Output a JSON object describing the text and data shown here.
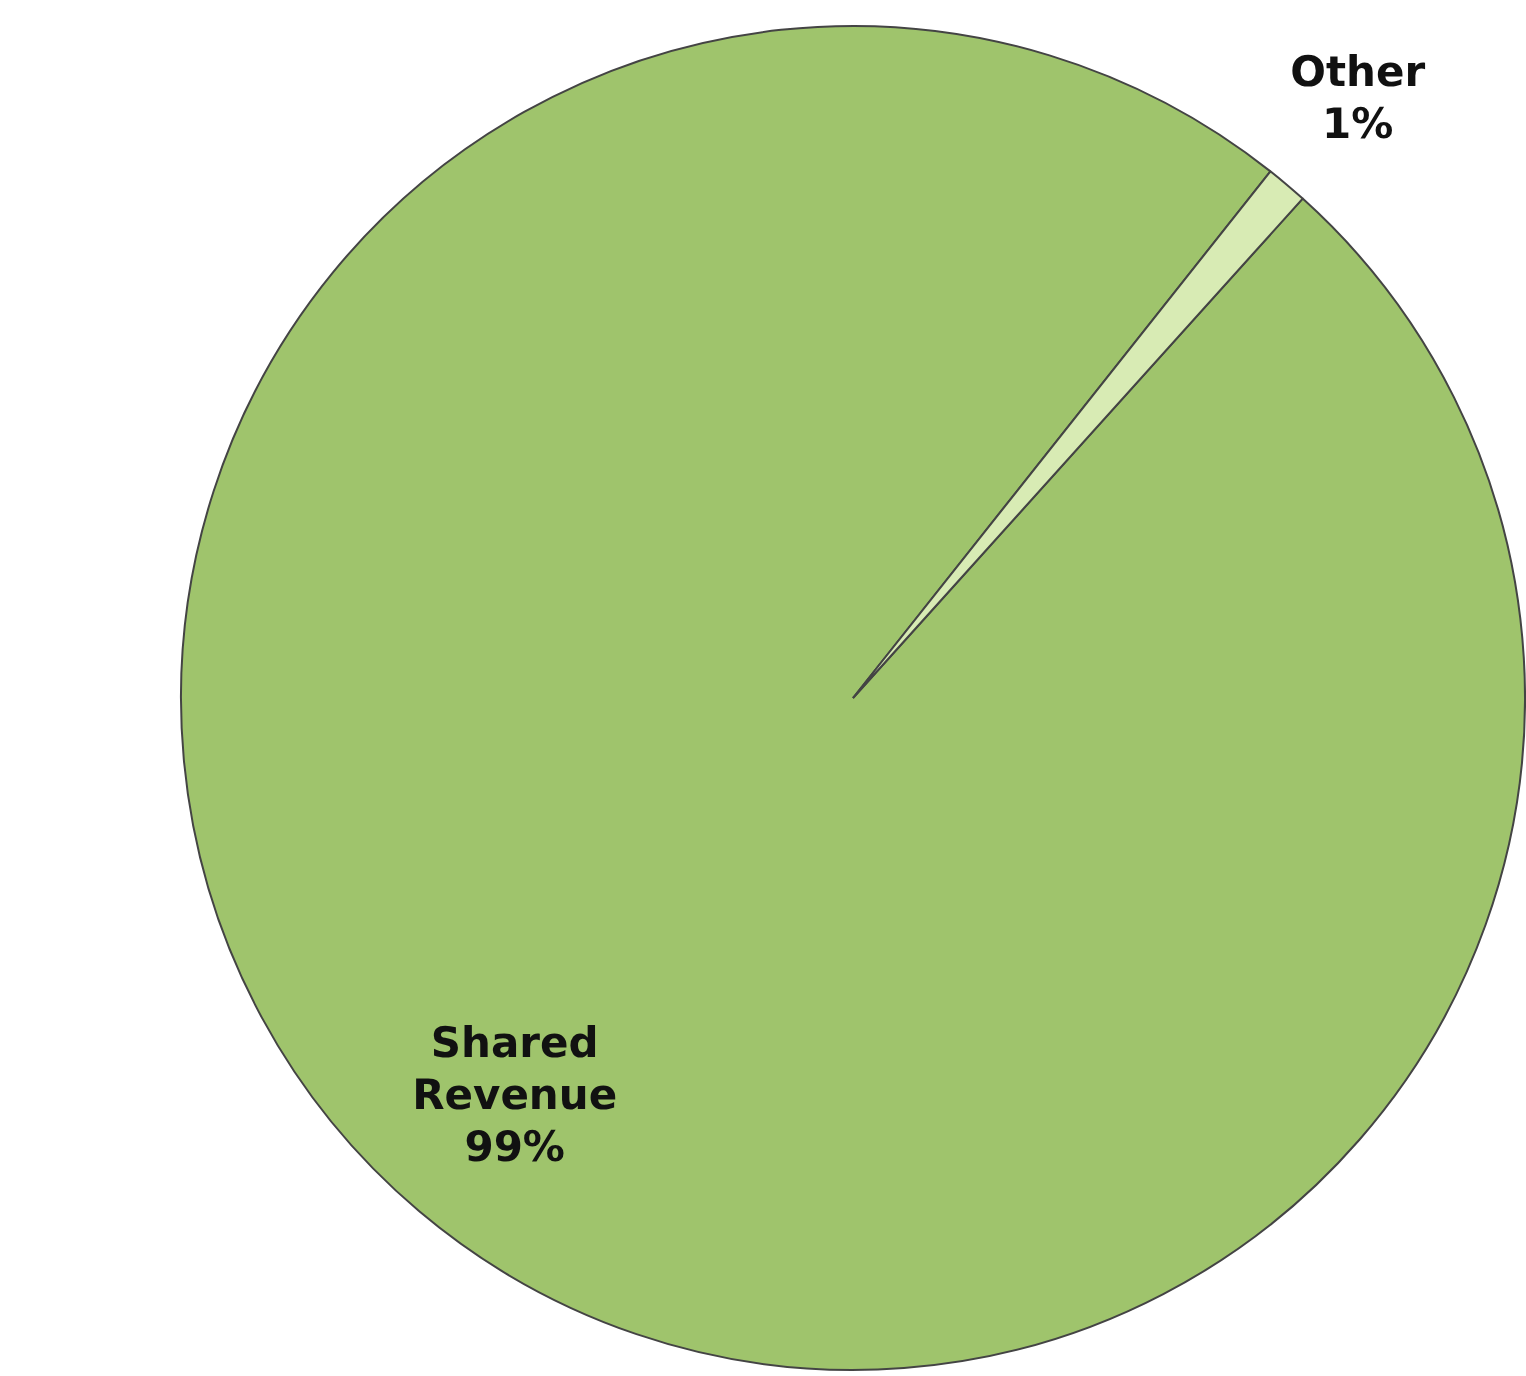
{
  "chart_data": {
    "type": "pie",
    "categories": [
      "Shared Revenue",
      "Other"
    ],
    "values": [
      99,
      1
    ],
    "colors": [
      "#9fc46c",
      "#d8ebb4"
    ],
    "value_labels": [
      "99%",
      "1%"
    ],
    "legend": false
  }
}
